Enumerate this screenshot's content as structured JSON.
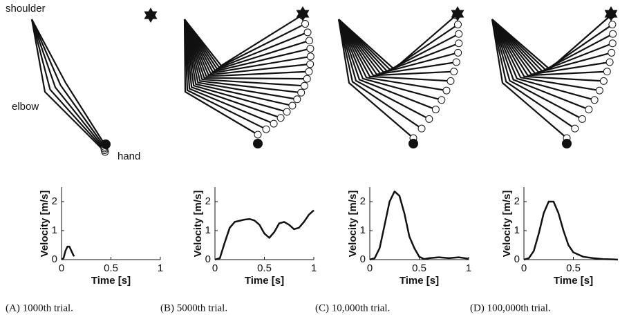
{
  "arm_labels": [
    "shoulder",
    "elbow",
    "hand"
  ],
  "chart_data": [
    {
      "type": "line",
      "caption": "(A) 1000th trial.",
      "xlabel": "Time [s]",
      "ylabel": "Velocity  [m/s]",
      "x": [
        0,
        0.02,
        0.04,
        0.06,
        0.08,
        0.1,
        0.12,
        0.13
      ],
      "series": [
        {
          "color": "#111111",
          "values": [
            0,
            0.05,
            0.3,
            0.45,
            0.45,
            0.3,
            0.15,
            0.12
          ]
        }
      ],
      "xlim": [
        0,
        1
      ],
      "xticks": [
        0,
        0.5,
        1
      ],
      "ylim": [
        0,
        2.5
      ],
      "yticks": [
        0,
        1,
        2
      ]
    },
    {
      "type": "line",
      "caption": "(B) 5000th trial.",
      "xlabel": "Time [s]",
      "ylabel": "Velocity  [m/s]",
      "x": [
        0,
        0.05,
        0.1,
        0.15,
        0.2,
        0.3,
        0.35,
        0.4,
        0.45,
        0.5,
        0.55,
        0.6,
        0.65,
        0.7,
        0.75,
        0.8,
        0.85,
        0.9,
        0.95,
        1
      ],
      "series": [
        {
          "color": "#111111",
          "values": [
            0,
            0.05,
            0.6,
            1.1,
            1.3,
            1.38,
            1.4,
            1.35,
            1.2,
            0.9,
            0.75,
            0.95,
            1.25,
            1.3,
            1.2,
            1.05,
            1.1,
            1.3,
            1.55,
            1.7
          ]
        }
      ],
      "xlim": [
        0,
        1
      ],
      "xticks": [
        0,
        0.5,
        1
      ],
      "ylim": [
        0,
        2.5
      ],
      "yticks": [
        0,
        1,
        2
      ]
    },
    {
      "type": "line",
      "caption": "(C) 10,000th trial.",
      "xlabel": "Time [s]",
      "ylabel": "Velocity  [m/s]",
      "x": [
        0,
        0.05,
        0.1,
        0.15,
        0.2,
        0.25,
        0.3,
        0.35,
        0.4,
        0.45,
        0.5,
        0.55,
        0.6,
        0.7,
        0.8,
        0.9,
        1
      ],
      "series": [
        {
          "color": "#111111",
          "values": [
            0,
            0.05,
            0.4,
            1.2,
            2.0,
            2.35,
            2.2,
            1.6,
            0.8,
            0.4,
            0.1,
            0.02,
            0.05,
            0.08,
            0.05,
            0.08,
            0.03
          ]
        }
      ],
      "xlim": [
        0,
        1
      ],
      "xticks": [
        0,
        0.5,
        1
      ],
      "ylim": [
        0,
        2.5
      ],
      "yticks": [
        0,
        1,
        2
      ]
    },
    {
      "type": "line",
      "caption": "(D) 100,000th trial.",
      "xlabel": "Time [s]",
      "ylabel": "Velocity  [m/s]",
      "x": [
        0,
        0.05,
        0.1,
        0.15,
        0.2,
        0.25,
        0.3,
        0.35,
        0.4,
        0.45,
        0.5,
        0.6,
        0.7,
        0.8,
        0.9,
        0.95
      ],
      "series": [
        {
          "color": "#111111",
          "values": [
            0,
            0.05,
            0.3,
            0.9,
            1.6,
            2.0,
            2.0,
            1.6,
            1.0,
            0.5,
            0.25,
            0.1,
            0.05,
            0.02,
            0.01,
            0
          ]
        }
      ],
      "xlim": [
        0,
        0.95
      ],
      "xticks": [
        0,
        0.5
      ],
      "ylim": [
        0,
        2.5
      ],
      "yticks": [
        0,
        1,
        2
      ]
    }
  ]
}
